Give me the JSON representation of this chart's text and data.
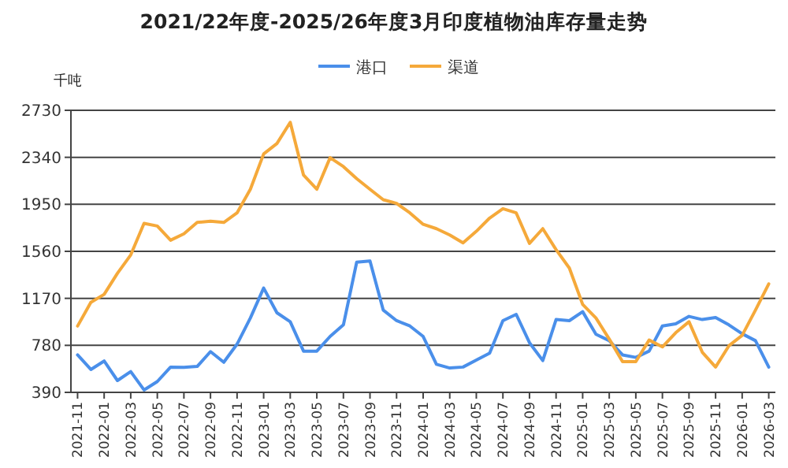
{
  "chart_data": {
    "type": "line",
    "title": "2021/22年度-2025/26年度3月印度植物油库存量走势",
    "ylabel": "千吨",
    "categories": [
      "2021-11",
      null,
      "2022-01",
      null,
      "2022-03",
      null,
      "2022-05",
      null,
      "2022-07",
      null,
      "2022-09",
      null,
      "2022-11",
      null,
      "2023-01",
      null,
      "2023-03",
      null,
      "2023-05",
      null,
      "2023-07",
      null,
      "2023-09",
      null,
      "2023-11",
      null,
      "2024-01",
      null,
      "2024-03",
      null,
      "2024-05",
      null,
      "2024-07",
      null,
      "2024-09",
      null,
      "2024-11",
      null,
      "2025-01",
      null,
      "2025-03",
      null,
      "2025-05",
      null,
      "2025-07",
      null,
      "2025-09",
      null,
      "2025-11",
      null,
      "2026-01",
      null,
      "2026-03"
    ],
    "series": [
      {
        "name": "港口",
        "color": "#4a8fea",
        "values": [
          701,
          580,
          650,
          488,
          562,
          410,
          480,
          600,
          597,
          605,
          728,
          640,
          790,
          1007,
          1255,
          1050,
          976,
          732,
          732,
          854,
          950,
          1470,
          1480,
          1072,
          985,
          941,
          854,
          623,
          592,
          600,
          658,
          715,
          985,
          1037,
          802,
          654,
          994,
          985,
          1059,
          872,
          819,
          701,
          680,
          732,
          941,
          959,
          1020,
          994,
          1011,
          950,
          876,
          819,
          600
        ]
      },
      {
        "name": "渠道",
        "color": "#f5a93a",
        "values": [
          940,
          1137,
          1203,
          1378,
          1530,
          1792,
          1770,
          1652,
          1705,
          1800,
          1810,
          1800,
          1879,
          2075,
          2368,
          2455,
          2630,
          2193,
          2075,
          2337,
          2263,
          2163,
          2075,
          1988,
          1958,
          1879,
          1784,
          1748,
          1696,
          1630,
          1726,
          1836,
          1914,
          1879,
          1626,
          1748,
          1574,
          1421,
          1120,
          1007,
          832,
          645,
          645,
          824,
          767,
          885,
          976,
          723,
          600,
          776,
          863,
          1072,
          1290
        ]
      }
    ],
    "ylim": [
      390,
      2730
    ],
    "yticks": [
      390,
      780,
      1170,
      1560,
      1950,
      2340,
      2730
    ],
    "grid": "y",
    "legend": "top"
  }
}
